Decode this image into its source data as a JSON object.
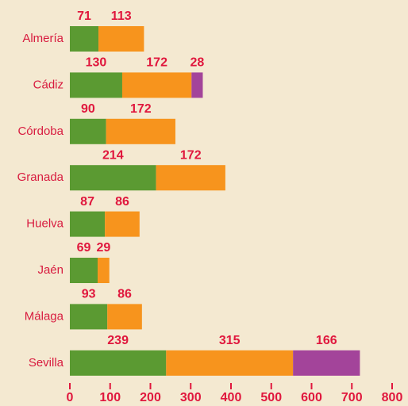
{
  "chart_data": {
    "type": "bar",
    "orientation": "horizontal",
    "stacked": true,
    "categories": [
      "Almería",
      "Cádiz",
      "Córdoba",
      "Granada",
      "Huelva",
      "Jaén",
      "Málaga",
      "Sevilla"
    ],
    "series": [
      {
        "color": "#5b9a32",
        "values": [
          71,
          130,
          90,
          214,
          87,
          69,
          93,
          239
        ]
      },
      {
        "color": "#f7941d",
        "values": [
          113,
          172,
          172,
          172,
          86,
          29,
          86,
          315
        ]
      },
      {
        "color": "#a3449a",
        "values": [
          null,
          28,
          null,
          null,
          null,
          null,
          null,
          166
        ]
      }
    ],
    "xlim": [
      0,
      800
    ],
    "xticks": [
      0,
      100,
      200,
      300,
      400,
      500,
      600,
      700,
      800
    ]
  }
}
